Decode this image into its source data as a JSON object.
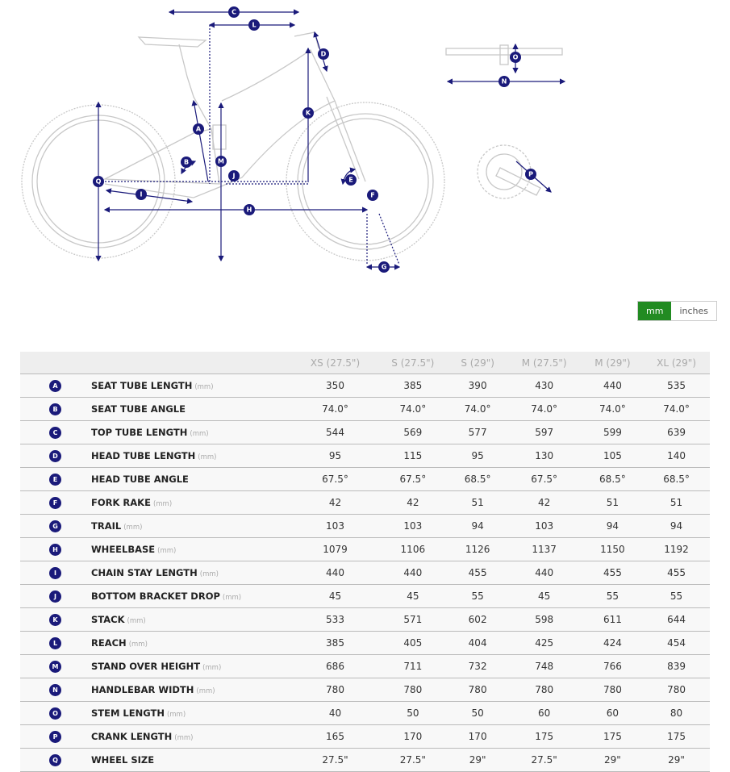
{
  "diagram": {
    "labels": {
      "A": "A",
      "B": "B",
      "C": "C",
      "D": "D",
      "E": "E",
      "F": "F",
      "G": "G",
      "H": "H",
      "I": "I",
      "J": "J",
      "K": "K",
      "L": "L",
      "M": "M",
      "N": "N",
      "O": "O",
      "P": "P",
      "Q": "Q"
    },
    "colors": {
      "measure": "#1a1a7a",
      "frame": "#c8c8c8"
    }
  },
  "unit_toggle": {
    "mm": "mm",
    "inches": "inches",
    "selected": "mm",
    "active_color": "#228b22"
  },
  "table": {
    "headers": [
      "XS (27.5\")",
      "S (27.5\")",
      "S (29\")",
      "M (27.5\")",
      "M (29\")",
      "XL (29\")"
    ],
    "rows": [
      {
        "key": "A",
        "label": "SEAT TUBE LENGTH",
        "unit": "(mm)",
        "values": [
          "350",
          "385",
          "390",
          "430",
          "440",
          "535"
        ]
      },
      {
        "key": "B",
        "label": "SEAT TUBE ANGLE",
        "unit": "",
        "values": [
          "74.0°",
          "74.0°",
          "74.0°",
          "74.0°",
          "74.0°",
          "74.0°"
        ]
      },
      {
        "key": "C",
        "label": "TOP TUBE LENGTH",
        "unit": "(mm)",
        "values": [
          "544",
          "569",
          "577",
          "597",
          "599",
          "639"
        ]
      },
      {
        "key": "D",
        "label": "HEAD TUBE LENGTH",
        "unit": "(mm)",
        "values": [
          "95",
          "115",
          "95",
          "130",
          "105",
          "140"
        ]
      },
      {
        "key": "E",
        "label": "HEAD TUBE ANGLE",
        "unit": "",
        "values": [
          "67.5°",
          "67.5°",
          "68.5°",
          "67.5°",
          "68.5°",
          "68.5°"
        ]
      },
      {
        "key": "F",
        "label": "FORK RAKE",
        "unit": "(mm)",
        "values": [
          "42",
          "42",
          "51",
          "42",
          "51",
          "51"
        ]
      },
      {
        "key": "G",
        "label": "TRAIL",
        "unit": "(mm)",
        "values": [
          "103",
          "103",
          "94",
          "103",
          "94",
          "94"
        ]
      },
      {
        "key": "H",
        "label": "WHEELBASE",
        "unit": "(mm)",
        "values": [
          "1079",
          "1106",
          "1126",
          "1137",
          "1150",
          "1192"
        ]
      },
      {
        "key": "I",
        "label": "CHAIN STAY LENGTH",
        "unit": "(mm)",
        "values": [
          "440",
          "440",
          "455",
          "440",
          "455",
          "455"
        ]
      },
      {
        "key": "J",
        "label": "BOTTOM BRACKET DROP",
        "unit": "(mm)",
        "values": [
          "45",
          "45",
          "55",
          "45",
          "55",
          "55"
        ]
      },
      {
        "key": "K",
        "label": "STACK",
        "unit": "(mm)",
        "values": [
          "533",
          "571",
          "602",
          "598",
          "611",
          "644"
        ]
      },
      {
        "key": "L",
        "label": "REACH",
        "unit": "(mm)",
        "values": [
          "385",
          "405",
          "404",
          "425",
          "424",
          "454"
        ]
      },
      {
        "key": "M",
        "label": "STAND OVER HEIGHT",
        "unit": "(mm)",
        "values": [
          "686",
          "711",
          "732",
          "748",
          "766",
          "839"
        ]
      },
      {
        "key": "N",
        "label": "HANDLEBAR WIDTH",
        "unit": "(mm)",
        "values": [
          "780",
          "780",
          "780",
          "780",
          "780",
          "780"
        ]
      },
      {
        "key": "O",
        "label": "STEM LENGTH",
        "unit": "(mm)",
        "values": [
          "40",
          "50",
          "50",
          "60",
          "60",
          "80"
        ]
      },
      {
        "key": "P",
        "label": "CRANK LENGTH",
        "unit": "(mm)",
        "values": [
          "165",
          "170",
          "170",
          "175",
          "175",
          "175"
        ]
      },
      {
        "key": "Q",
        "label": "WHEEL SIZE",
        "unit": "",
        "values": [
          "27.5\"",
          "27.5\"",
          "29\"",
          "27.5\"",
          "29\"",
          "29\""
        ]
      }
    ]
  }
}
